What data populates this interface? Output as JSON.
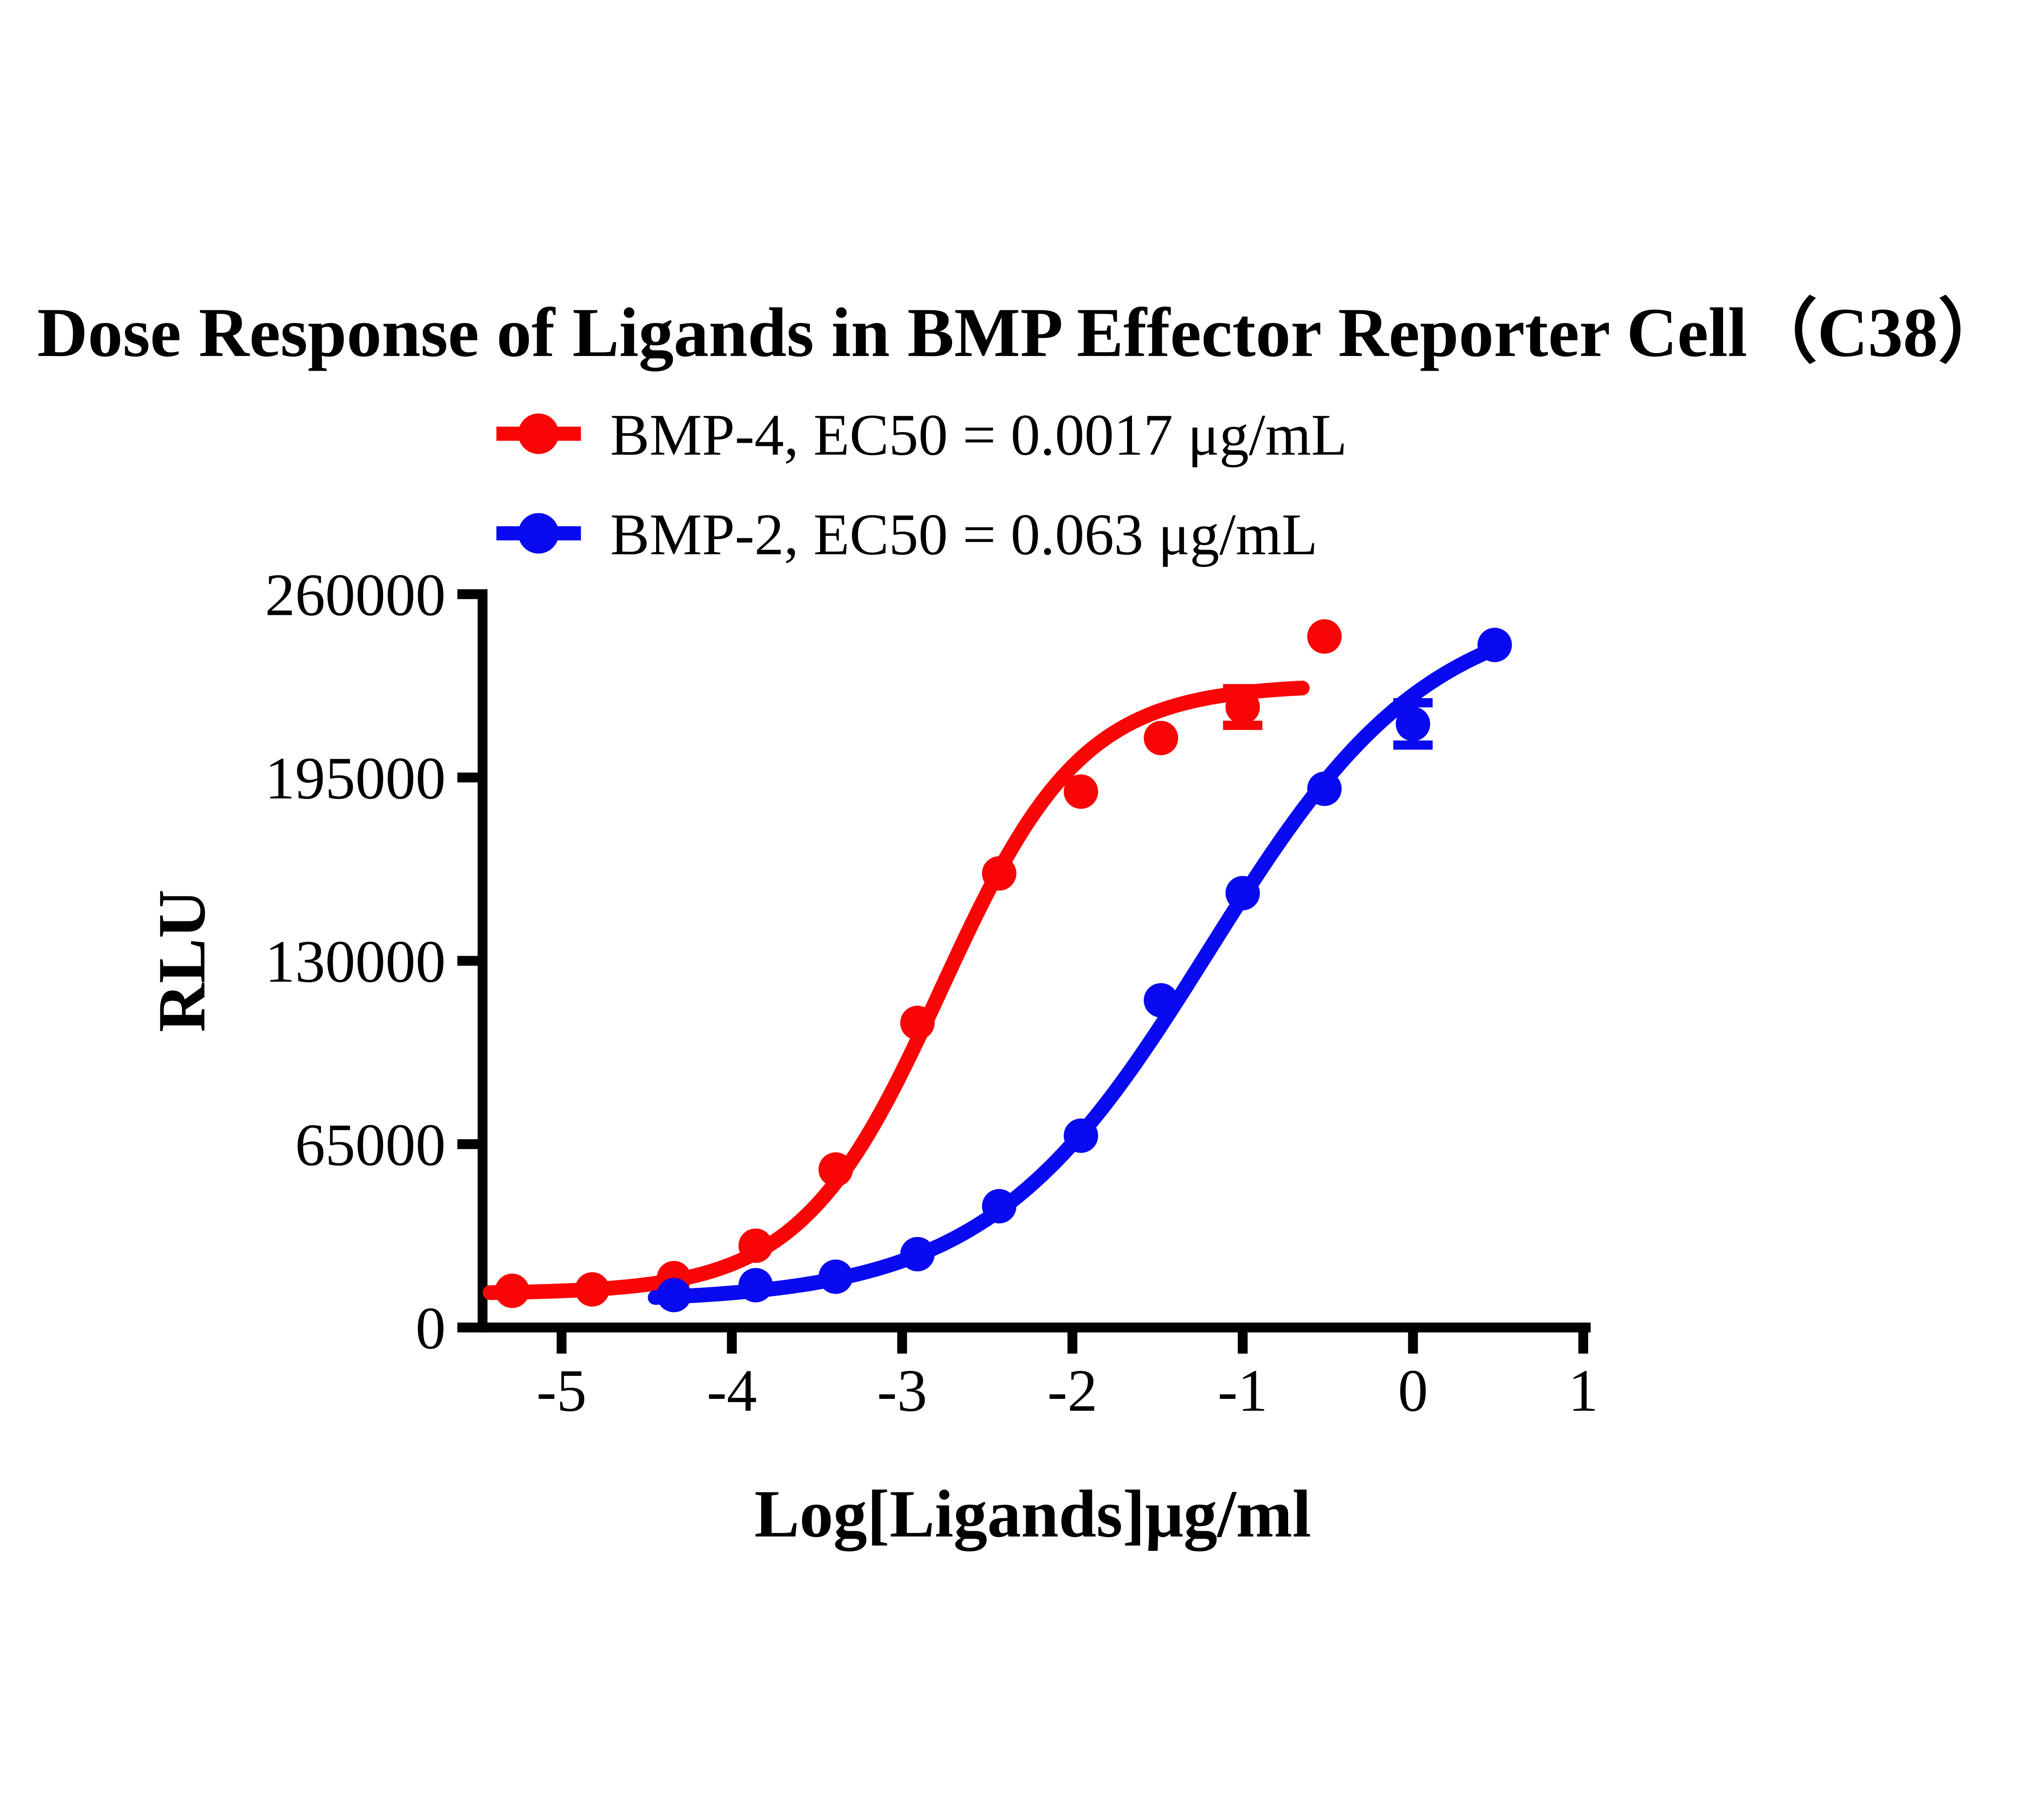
{
  "title": "Dose Response of Ligands in BMP Effector Reporter Cell（C38）",
  "colors": {
    "axis": "#000000",
    "background": "#FFFFFF",
    "bmp4_red": "#F80606",
    "bmp2_blue": "#0A0AF0"
  },
  "chart_data": {
    "type": "scatter",
    "title": "Dose Response of Ligands in BMP Effector Reporter Cell（C38）",
    "xlabel": "Log[Ligands]μg/ml",
    "ylabel": "RLU",
    "x_ticks": [
      -5,
      -4,
      -3,
      -2,
      -1,
      0,
      1
    ],
    "y_ticks": [
      0,
      65000,
      130000,
      195000,
      260000
    ],
    "xlim": [
      -5.6,
      1.1
    ],
    "ylim": [
      0,
      260000
    ],
    "grid": false,
    "legend_position": "top-center",
    "series": [
      {
        "name": "BMP-4",
        "ec50": "0.0017 μg/mL",
        "legend_label": "BMP-4, EC50 = 0.0017 μg/mL",
        "color": "#F80606",
        "marker": "circle",
        "points": [
          {
            "x": -5.29,
            "y": 13000
          },
          {
            "x": -4.82,
            "y": 13500
          },
          {
            "x": -4.34,
            "y": 17500
          },
          {
            "x": -3.86,
            "y": 29000
          },
          {
            "x": -3.39,
            "y": 56000
          },
          {
            "x": -2.91,
            "y": 108000
          },
          {
            "x": -2.43,
            "y": 161000
          },
          {
            "x": -1.95,
            "y": 190000
          },
          {
            "x": -1.48,
            "y": 209000
          },
          {
            "x": -1.0,
            "y": 220000,
            "err": 6500
          },
          {
            "x": -0.52,
            "y": 245000
          }
        ],
        "fit": {
          "model": "4PL",
          "bottom": 12000,
          "top": 228000,
          "logEC50": -2.77,
          "hill": 1.05,
          "xmin": -5.42,
          "xmax": -0.65
        }
      },
      {
        "name": "BMP-2",
        "ec50": "0.063 μg/mL",
        "legend_label": "BMP-2, EC50 = 0.063 μg/mL",
        "color": "#0A0AF0",
        "marker": "circle",
        "points": [
          {
            "x": -4.34,
            "y": 11500
          },
          {
            "x": -3.86,
            "y": 15000
          },
          {
            "x": -3.39,
            "y": 18000
          },
          {
            "x": -2.91,
            "y": 26000
          },
          {
            "x": -2.43,
            "y": 43000
          },
          {
            "x": -1.95,
            "y": 68000
          },
          {
            "x": -1.48,
            "y": 116000
          },
          {
            "x": -1.0,
            "y": 154000
          },
          {
            "x": -0.52,
            "y": 191000
          },
          {
            "x": 0.0,
            "y": 214000,
            "err": 7500
          },
          {
            "x": 0.48,
            "y": 242000
          }
        ],
        "fit": {
          "model": "4PL",
          "bottom": 9000,
          "top": 258000,
          "logEC50": -1.2,
          "hill": 0.67,
          "xmin": -4.45,
          "xmax": 0.5
        }
      }
    ]
  }
}
